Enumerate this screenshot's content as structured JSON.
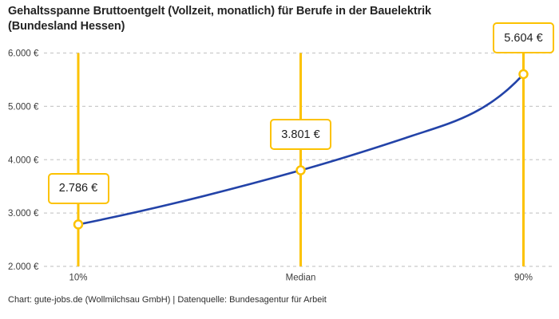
{
  "header": {
    "title_line1": "Gehaltsspanne Bruttoentgelt (Vollzeit, monatlich) für Berufe in der Bauelektrik",
    "title_line2": "(Bundesland Hessen)"
  },
  "footer": {
    "text": "Chart: gute-jobs.de (Wollmilchsau GmbH) | Datenquelle: Bundesagentur für Arbeit"
  },
  "colors": {
    "accent_yellow": "#FCC200",
    "line_blue": "#2343A8",
    "grid": "#CBCBCB",
    "axis_text": "#3D3D3D",
    "title_text": "#242424",
    "background": "#FFFFFF"
  },
  "chart_data": {
    "type": "line",
    "title": "Gehaltsspanne Bruttoentgelt (Vollzeit, monatlich) für Berufe in der Bauelektrik (Bundesland Hessen)",
    "categories": [
      "10%",
      "Median",
      "90%"
    ],
    "values": [
      2786,
      3801,
      5604
    ],
    "point_labels": [
      "2.786 €",
      "3.801 €",
      "5.604 €"
    ],
    "y_ticks": [
      {
        "value": 6000,
        "label": "6.000 €"
      },
      {
        "value": 5000,
        "label": "5.000 €"
      },
      {
        "value": 4000,
        "label": "4.000 €"
      },
      {
        "value": 3000,
        "label": "3.000 €"
      },
      {
        "value": 2000,
        "label": "2.000 €"
      }
    ],
    "ylim": [
      2000,
      6000
    ],
    "xlabel": "",
    "ylabel": "",
    "grid": "horizontal-dashed",
    "legend": "none",
    "marker_style": "open-circle-on-vertical-rule",
    "source": "Bundesagentur für Arbeit"
  }
}
